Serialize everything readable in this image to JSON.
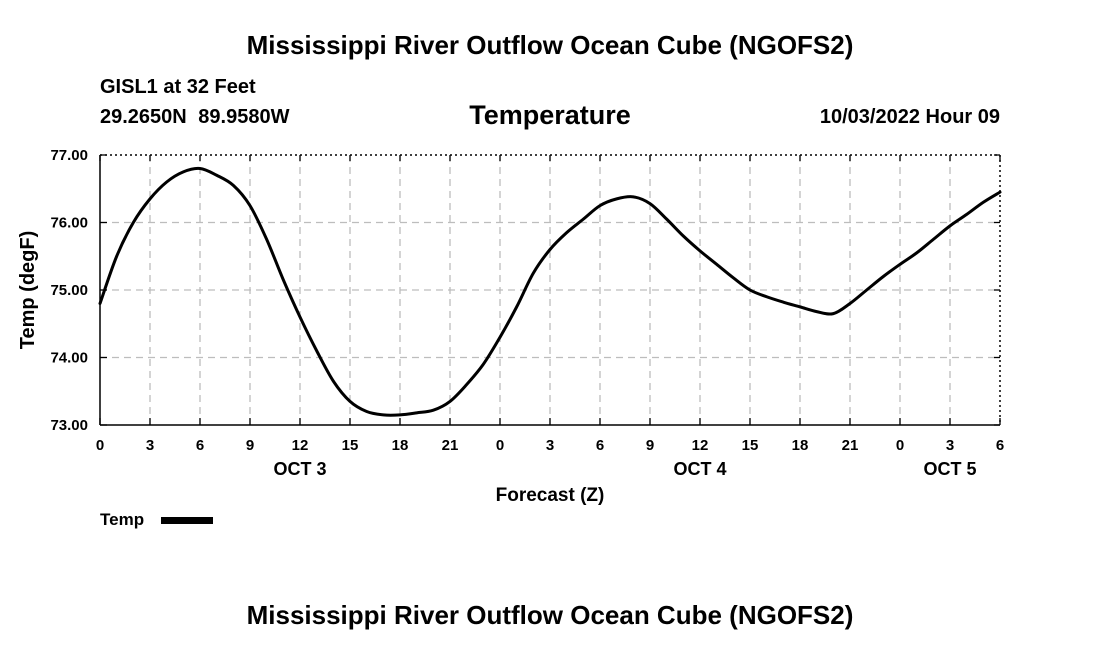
{
  "header": {
    "title": "Mississippi River Outflow Ocean Cube (NGOFS2)",
    "station": "GISL1 at 32 Feet",
    "coords": "29.2650N  89.9580W",
    "variable": "Temperature",
    "issued": "10/03/2022 Hour 09"
  },
  "footer": {
    "title": "Mississippi River Outflow Ocean Cube (NGOFS2)"
  },
  "legend": {
    "label": "Temp",
    "color": "#000000"
  },
  "chart_data": {
    "type": "line",
    "title": "Temperature",
    "xlabel": "Forecast (Z)",
    "ylabel": "Temp (degF)",
    "xlim": [
      0,
      54
    ],
    "ylim": [
      73.0,
      77.0
    ],
    "grid": true,
    "legend_position": "bottom-left",
    "x_ticks": [
      0,
      3,
      6,
      9,
      12,
      15,
      18,
      21,
      24,
      27,
      30,
      33,
      36,
      39,
      42,
      45,
      48,
      51,
      54
    ],
    "x_tick_labels": [
      "0",
      "3",
      "6",
      "9",
      "12",
      "15",
      "18",
      "21",
      "0",
      "3",
      "6",
      "9",
      "12",
      "15",
      "18",
      "21",
      "0",
      "3",
      "6"
    ],
    "y_ticks": [
      73.0,
      74.0,
      75.0,
      76.0,
      77.0
    ],
    "y_tick_labels": [
      "73.00",
      "74.00",
      "75.00",
      "76.00",
      "77.00"
    ],
    "day_labels": [
      {
        "x": 12,
        "label": "OCT 3"
      },
      {
        "x": 36,
        "label": "OCT 4"
      },
      {
        "x": 51,
        "label": "OCT 5"
      }
    ],
    "series": [
      {
        "name": "Temp",
        "color": "#000000",
        "x": [
          0,
          1,
          2,
          3,
          4,
          5,
          6,
          7,
          8,
          9,
          10,
          11,
          12,
          13,
          14,
          15,
          16,
          17,
          18,
          19,
          20,
          21,
          22,
          23,
          24,
          25,
          26,
          27,
          28,
          29,
          30,
          31,
          32,
          33,
          34,
          35,
          36,
          37,
          38,
          39,
          40,
          41,
          42,
          43,
          44,
          45,
          46,
          47,
          48,
          49,
          50,
          51,
          52,
          53,
          54
        ],
        "values": [
          74.8,
          75.5,
          76.0,
          76.35,
          76.6,
          76.75,
          76.8,
          76.7,
          76.55,
          76.25,
          75.75,
          75.15,
          74.6,
          74.1,
          73.65,
          73.35,
          73.2,
          73.15,
          73.15,
          73.18,
          73.22,
          73.35,
          73.6,
          73.9,
          74.3,
          74.75,
          75.25,
          75.6,
          75.85,
          76.05,
          76.25,
          76.35,
          76.38,
          76.28,
          76.05,
          75.8,
          75.58,
          75.38,
          75.18,
          75.0,
          74.9,
          74.82,
          74.75,
          74.68,
          74.65,
          74.8,
          75.0,
          75.2,
          75.38,
          75.55,
          75.75,
          75.95,
          76.12,
          76.3,
          76.45
        ]
      }
    ]
  }
}
